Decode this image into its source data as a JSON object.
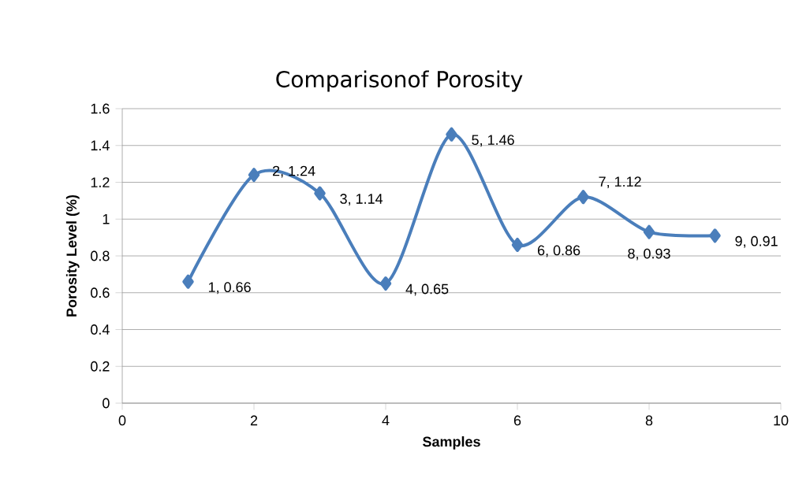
{
  "chart_data": {
    "type": "line",
    "title": "Comparisonof Porosity",
    "xlabel": "Samples",
    "ylabel": "Porosity Level (%)",
    "x": [
      1,
      2,
      3,
      4,
      5,
      6,
      7,
      8,
      9
    ],
    "values": [
      0.66,
      1.24,
      1.14,
      0.65,
      1.46,
      0.86,
      1.12,
      0.93,
      0.91
    ],
    "value_labels": [
      "1, 0.66",
      "2, 1.24",
      "3, 1.14",
      "4, 0.65",
      "5, 1.46",
      "6, 0.86",
      "7, 1.12",
      "8, 0.93",
      "9, 0.91"
    ],
    "color": "#4a7ebb",
    "marker": "diamond",
    "xlim": [
      0,
      10
    ],
    "ylim": [
      0,
      1.6
    ],
    "xticks": [
      0,
      2,
      4,
      6,
      8,
      10
    ],
    "yticks": [
      0,
      0.2,
      0.4,
      0.6,
      0.8,
      1,
      1.2,
      1.4,
      1.6
    ],
    "grid": "y"
  }
}
